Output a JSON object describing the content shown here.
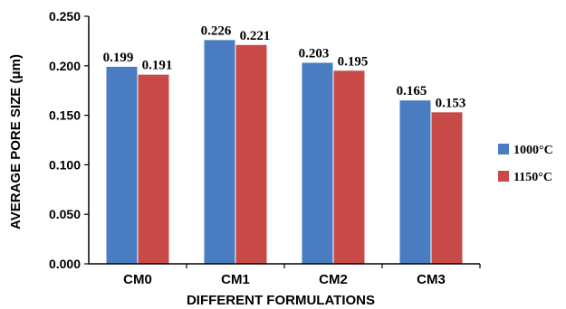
{
  "chart_data": {
    "type": "bar",
    "categories": [
      "CM0",
      "CM1",
      "CM2",
      "CM3"
    ],
    "series": [
      {
        "name": "1000°C",
        "values": [
          0.199,
          0.226,
          0.203,
          0.165
        ],
        "labels": [
          "0.199",
          "0.226",
          "0.203",
          "0.165"
        ],
        "color": "#4a7cc2"
      },
      {
        "name": "1150°C",
        "values": [
          0.191,
          0.221,
          0.195,
          0.153
        ],
        "labels": [
          "0.191",
          "0.221",
          "0.195",
          "0.153"
        ],
        "color": "#c84a48"
      }
    ],
    "xlabel": "DIFFERENT FORMULATIONS",
    "ylabel": "AVERAGE PORE SIZE (μm)",
    "ylim": [
      0,
      0.25
    ],
    "yticks": [
      "0.000",
      "0.050",
      "0.100",
      "0.150",
      "0.200",
      "0.250"
    ],
    "grid": false,
    "legend_position": "right"
  }
}
